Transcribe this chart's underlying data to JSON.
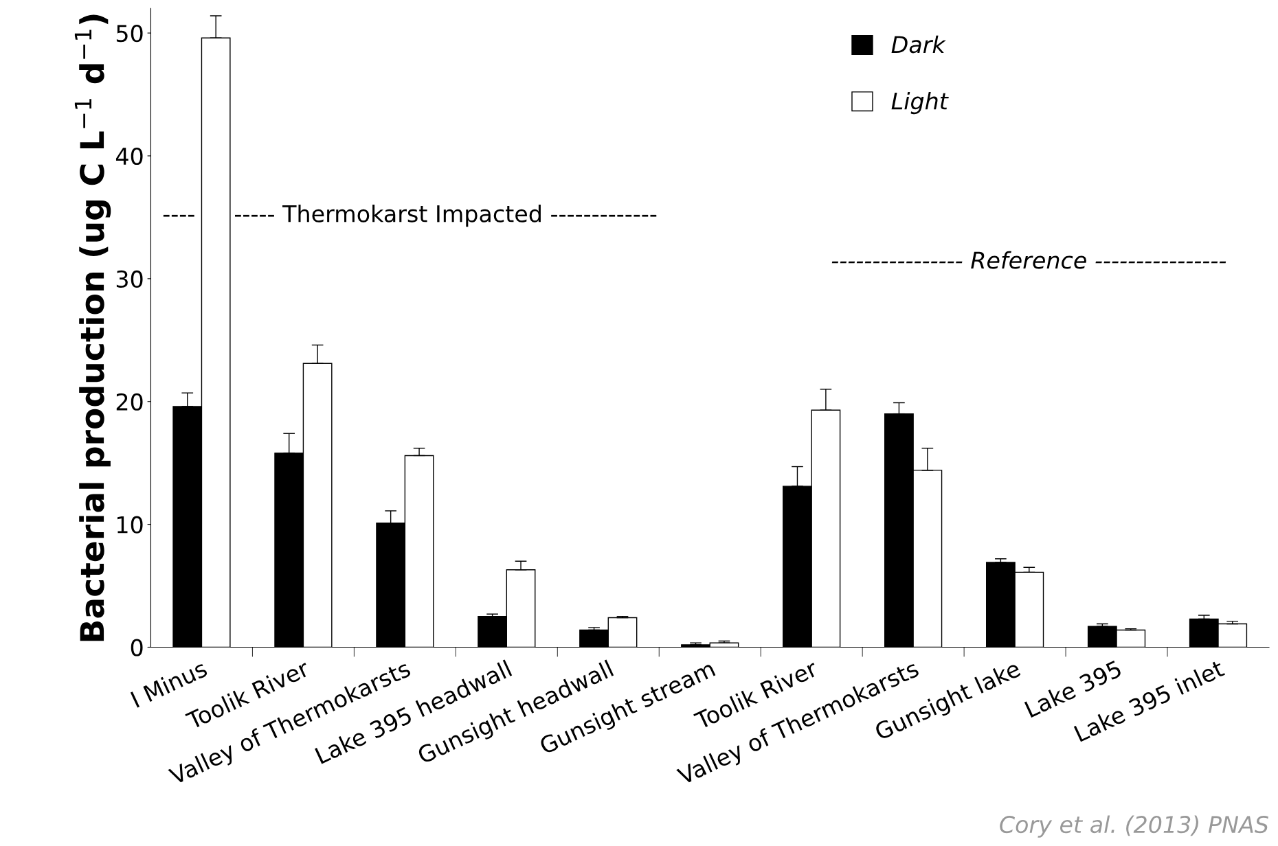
{
  "chart_data": {
    "type": "bar",
    "ylabel": "Bacterial production (ug C L$^{−1}$ d$^{−1}$)",
    "categories": [
      "I Minus",
      "Toolik River",
      "Valley of Thermokarsts",
      "Lake 395 headwall",
      "Gunsight headwall",
      "Gunsight stream",
      "Toolik River",
      "Valley of Thermokarsts",
      "Gunsight lake",
      "Lake 395",
      "Lake 395 inlet"
    ],
    "series": [
      {
        "name": "Dark",
        "color": "#000000",
        "values": [
          19.6,
          15.8,
          10.1,
          2.5,
          1.4,
          0.2,
          13.1,
          19.0,
          6.9,
          1.7,
          2.3
        ],
        "errors": [
          [
            19.6,
            20.7
          ],
          [
            15.8,
            17.4
          ],
          [
            10.1,
            11.1
          ],
          [
            2.5,
            2.7
          ],
          [
            1.4,
            1.6
          ],
          [
            0.2,
            0.35
          ],
          [
            13.1,
            14.7
          ],
          [
            19.0,
            19.9
          ],
          [
            6.9,
            7.2
          ],
          [
            1.7,
            1.9
          ],
          [
            2.3,
            2.6
          ]
        ]
      },
      {
        "name": "Light",
        "color": "#ffffff",
        "values": [
          49.6,
          23.1,
          15.6,
          6.3,
          2.4,
          0.35,
          19.3,
          14.4,
          6.1,
          1.4,
          1.9
        ],
        "errors": [
          [
            49.6,
            51.4
          ],
          [
            23.1,
            24.6
          ],
          [
            15.6,
            16.2
          ],
          [
            6.3,
            7.0
          ],
          [
            2.4,
            2.5
          ],
          [
            0.35,
            0.5
          ],
          [
            19.3,
            21.0
          ],
          [
            14.4,
            16.2
          ],
          [
            6.1,
            6.5
          ],
          [
            1.4,
            1.5
          ],
          [
            1.9,
            2.1
          ]
        ]
      }
    ],
    "ylim": [
      0,
      52
    ],
    "yticks": [
      0,
      10,
      20,
      30,
      40,
      50
    ],
    "grid": false,
    "legend": "top",
    "annotations": [
      "----",
      "----- Thermokarst Impacted -------------",
      "---------------- Reference ----------------",
      "Cory et al. (2013) PNAS"
    ]
  }
}
